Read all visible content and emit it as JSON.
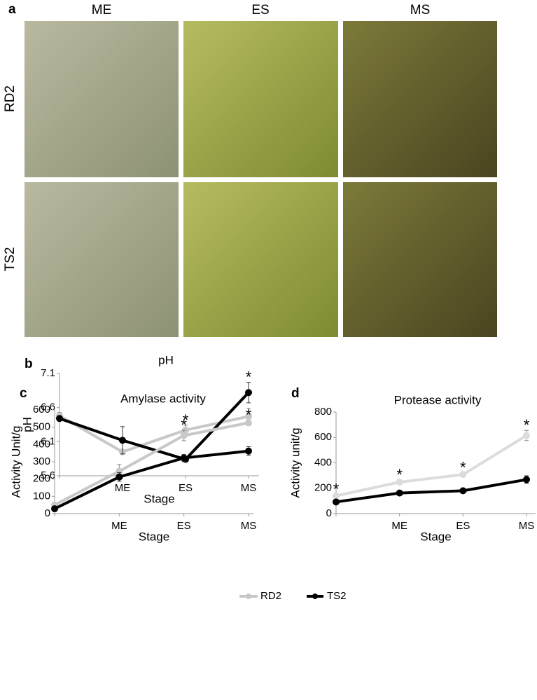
{
  "panel_a": {
    "label": "a",
    "columns": [
      "ME",
      "ES",
      "MS"
    ],
    "rows": [
      "RD2",
      "TS2"
    ]
  },
  "panel_labels": [
    "b",
    "c",
    "d"
  ],
  "chart_data": [
    {
      "type": "line",
      "title": "pH",
      "x_label": "Stage",
      "y_label": "pH",
      "categories": [
        null,
        "ME",
        "ES",
        "MS"
      ],
      "asterisks": [
        null,
        null,
        "*",
        "*"
      ],
      "ylim": [
        5.6,
        7.1
      ],
      "yticks": [
        5.6,
        6.1,
        6.6,
        7.1
      ],
      "series": [
        {
          "name": "RD2",
          "color": "#c8c8c8",
          "values": [
            6.48,
            5.95,
            6.27,
            6.47
          ],
          "errors": [
            0.05,
            0.03,
            0.07,
            0.12
          ]
        },
        {
          "name": "TS2",
          "color": "#000000",
          "values": [
            6.44,
            6.12,
            5.84,
            6.82
          ],
          "errors": [
            0.03,
            0.2,
            0.02,
            0.15
          ]
        }
      ]
    },
    {
      "type": "line",
      "title": "Amylase activity",
      "x_label": "Stage",
      "y_label": "Activity Unit/g",
      "categories": [
        null,
        "ME",
        "ES",
        "MS"
      ],
      "asterisks": [
        null,
        null,
        "*",
        "*"
      ],
      "ylim": [
        0,
        600
      ],
      "yticks": [
        0,
        100,
        200,
        300,
        400,
        500,
        600
      ],
      "series": [
        {
          "name": "RD2",
          "color": "#c8c8c8",
          "values": [
            50,
            245,
            452,
            525
          ],
          "errors": [
            10,
            40,
            30,
            15
          ]
        },
        {
          "name": "TS2",
          "color": "#000000",
          "values": [
            28,
            212,
            322,
            362
          ],
          "errors": [
            5,
            25,
            20,
            25
          ]
        }
      ]
    },
    {
      "type": "line",
      "title": "Protease activity",
      "x_label": "Stage",
      "y_label": "Activity unit/g",
      "categories": [
        null,
        "ME",
        "ES",
        "MS"
      ],
      "asterisks": [
        "*",
        "*",
        "*",
        "*"
      ],
      "ylim": [
        0,
        800
      ],
      "yticks": [
        0,
        200,
        400,
        600,
        800
      ],
      "series": [
        {
          "name": "RD2",
          "color": "#dcdcdc",
          "values": [
            140,
            248,
            308,
            615
          ],
          "errors": [
            10,
            15,
            15,
            40
          ]
        },
        {
          "name": "TS2",
          "color": "#000000",
          "values": [
            92,
            162,
            180,
            268
          ],
          "errors": [
            8,
            10,
            10,
            30
          ]
        }
      ]
    }
  ]
}
